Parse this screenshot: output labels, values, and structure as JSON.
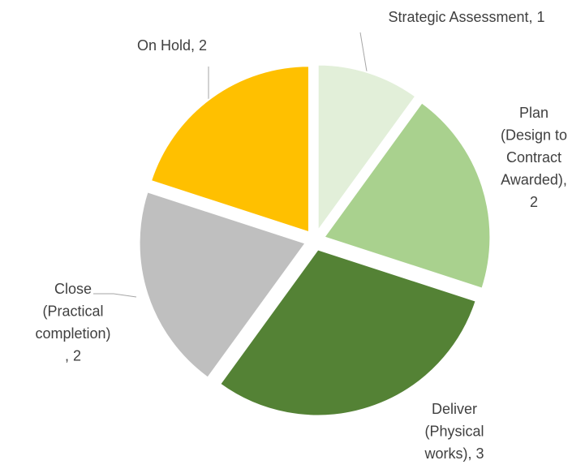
{
  "chart_data": {
    "type": "pie",
    "values": [
      1,
      2,
      3,
      2,
      2
    ],
    "value_labels": [
      [
        "Strategic Assessment, 1"
      ],
      [
        "Plan",
        "(Design to",
        "Contract",
        "Awarded),",
        "2"
      ],
      [
        "Deliver",
        "(Physical",
        "works), 3"
      ],
      [
        "Close",
        "(Practical",
        "completion)",
        ", 2"
      ],
      [
        "On Hold, 2"
      ]
    ],
    "colors": [
      "#e2efd9",
      "#a9d18e",
      "#548235",
      "#bfbfbf",
      "#ffc000"
    ]
  }
}
